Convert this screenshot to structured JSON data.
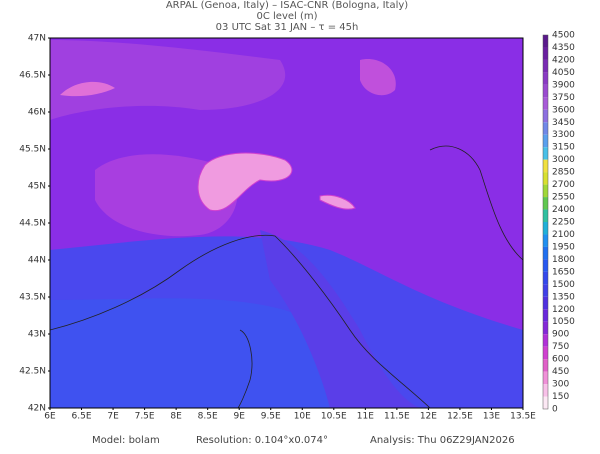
{
  "header": {
    "line1": "ARPAL (Genoa, Italy)  –  ISAC-CNR (Bologna, Italy)",
    "line2": "0C level (m)",
    "line3": "03 UTC Sat 31 JAN  –  τ = 45h"
  },
  "lat_labels": [
    "47N",
    "46.5N",
    "46N",
    "45.5N",
    "45N",
    "44.5N",
    "44N",
    "43.5N",
    "43N",
    "42.5N",
    "42N"
  ],
  "lon_labels": [
    "6E",
    "6.5E",
    "7E",
    "7.5E",
    "8E",
    "8.5E",
    "9E",
    "9.5E",
    "10E",
    "10.5E",
    "11E",
    "11.5E",
    "12E",
    "12.5E",
    "13E",
    "13.5E"
  ],
  "colorbar": {
    "labels": [
      4500,
      4350,
      4200,
      4050,
      3900,
      3750,
      3600,
      3450,
      3300,
      3150,
      3000,
      2850,
      2700,
      2550,
      2400,
      2250,
      2100,
      1950,
      1800,
      1650,
      1500,
      1350,
      1200,
      1050,
      900,
      750,
      600,
      450,
      300,
      150,
      0
    ],
    "colors": [
      "#5a1a8c",
      "#6a1fa0",
      "#7a2bb4",
      "#8a3ac4",
      "#9a4ad0",
      "#a85ad8",
      "#8c6fe0",
      "#7088e8",
      "#5aa0ee",
      "#48c0e8",
      "#f0e040",
      "#d8e030",
      "#a0d838",
      "#60c850",
      "#30c0a0",
      "#20b0d8",
      "#2090f0",
      "#2070f0",
      "#2858f0",
      "#3448ec",
      "#4040e8",
      "#5030e0",
      "#6a28dc",
      "#8428d8",
      "#b030d8",
      "#d040d0",
      "#e060c8",
      "#f090d8",
      "#f8c0e8",
      "#fce8f4"
    ]
  },
  "footer": {
    "model": "Model: bolam",
    "resolution": "Resolution: 0.104°x0.074°",
    "analysis": "Analysis: Thu 06Z29JAN2026"
  }
}
